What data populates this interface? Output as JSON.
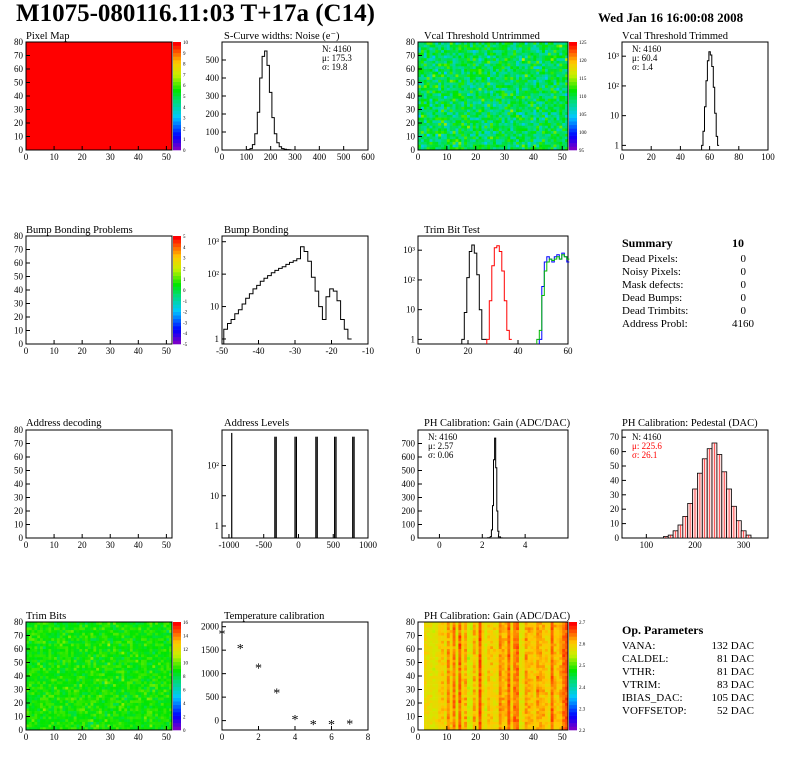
{
  "header": {
    "title": "M1075-080116.11:03 T+17a (C14)",
    "date": "Wed Jan 16 16:00:08 2008"
  },
  "chart_data": [
    {
      "id": "pixel-map",
      "type": "heatmap",
      "title": "Pixel Map",
      "xlim": [
        0,
        52
      ],
      "ylim": [
        0,
        80
      ],
      "xticks": [
        0,
        10,
        20,
        30,
        40,
        50
      ],
      "yticks": [
        0,
        10,
        20,
        30,
        40,
        50,
        60,
        70,
        80
      ],
      "zscale_ticks": [
        0,
        1,
        2,
        3,
        4,
        5,
        6,
        7,
        8,
        9,
        10
      ],
      "fill": "#ff0000"
    },
    {
      "id": "scurve-noise",
      "type": "line",
      "title": "S-Curve widths: Noise (e⁻)",
      "xlim": [
        0,
        600
      ],
      "ylim": [
        0,
        600
      ],
      "xticks": [
        0,
        100,
        200,
        300,
        400,
        500,
        600
      ],
      "yticks": [
        0,
        100,
        200,
        300,
        400,
        500
      ],
      "stats": [
        "N: 4160",
        "μ: 175.3",
        "σ: 19.8"
      ],
      "x": [
        110,
        120,
        130,
        140,
        150,
        160,
        170,
        180,
        190,
        200,
        210,
        220,
        230,
        240,
        250,
        260,
        270,
        280
      ],
      "y": [
        2,
        8,
        30,
        90,
        210,
        400,
        520,
        550,
        470,
        320,
        180,
        90,
        40,
        18,
        8,
        4,
        2,
        1
      ]
    },
    {
      "id": "vcal-untrimmed",
      "type": "heatmap",
      "title": "Vcal Threshold Untrimmed",
      "xlim": [
        0,
        52
      ],
      "ylim": [
        0,
        80
      ],
      "xticks": [
        0,
        10,
        20,
        30,
        40,
        50
      ],
      "yticks": [
        0,
        10,
        20,
        30,
        40,
        50,
        60,
        70,
        80
      ],
      "zscale_ticks": [
        95,
        100,
        105,
        110,
        115,
        120,
        125
      ],
      "zrange": [
        95,
        125
      ]
    },
    {
      "id": "vcal-trimmed",
      "type": "line",
      "title": "Vcal Threshold Trimmed",
      "xlim": [
        0,
        100
      ],
      "ylog": true,
      "ylim": [
        0.7,
        3000
      ],
      "xticks": [
        0,
        20,
        40,
        60,
        80,
        100
      ],
      "yticks": [
        1,
        10,
        100,
        1000
      ],
      "yticklabels": [
        "1",
        "10",
        "10²",
        "10³"
      ],
      "stats": [
        "N: 4160",
        "μ: 60.4",
        "σ:  1.4"
      ],
      "x": [
        55,
        56,
        57,
        58,
        59,
        60,
        61,
        62,
        63,
        64,
        65,
        66
      ],
      "y": [
        1,
        3,
        20,
        150,
        700,
        1400,
        1100,
        450,
        90,
        12,
        2,
        1
      ]
    },
    {
      "id": "bump-problems",
      "type": "heatmap",
      "title": "Bump Bonding Problems",
      "xlim": [
        0,
        52
      ],
      "ylim": [
        0,
        80
      ],
      "xticks": [
        0,
        10,
        20,
        30,
        40,
        50
      ],
      "yticks": [
        0,
        10,
        20,
        30,
        40,
        50,
        60,
        70,
        80
      ],
      "zscale_ticks": [
        -5,
        -4,
        -3,
        -2,
        -1,
        0,
        1,
        2,
        3,
        4,
        5
      ],
      "fill": "none"
    },
    {
      "id": "bump-bonding",
      "type": "line",
      "title": "Bump Bonding",
      "xlim": [
        -50,
        -10
      ],
      "ylog": true,
      "ylim": [
        0.7,
        1500
      ],
      "xticks": [
        -50,
        -40,
        -30,
        -20,
        -10
      ],
      "yticks": [
        1,
        10,
        100,
        1000
      ],
      "yticklabels": [
        "1",
        "10",
        "10²",
        "10³"
      ],
      "x": [
        -49,
        -48,
        -47,
        -46,
        -45,
        -44,
        -43,
        -42,
        -41,
        -40,
        -39,
        -38,
        -37,
        -36,
        -35,
        -34,
        -33,
        -32,
        -31,
        -30,
        -29,
        -28,
        -27,
        -26,
        -25,
        -24,
        -23,
        -22,
        -21,
        -20,
        -19,
        -18,
        -17,
        -16,
        -15
      ],
      "y": [
        2,
        3,
        4,
        6,
        8,
        12,
        18,
        25,
        35,
        45,
        60,
        75,
        90,
        110,
        130,
        150,
        170,
        200,
        230,
        260,
        300,
        700,
        500,
        250,
        80,
        30,
        10,
        4,
        20,
        35,
        30,
        15,
        4,
        2,
        1
      ]
    },
    {
      "id": "trim-bit-test",
      "type": "line",
      "title": "Trim Bit Test",
      "xlim": [
        0,
        60
      ],
      "ylog": true,
      "ylim": [
        0.7,
        3000
      ],
      "xticks": [
        0,
        20,
        40,
        60
      ],
      "yticks": [
        1,
        10,
        100,
        1000
      ],
      "yticklabels": [
        "1",
        "10",
        "10²",
        "10³"
      ],
      "series": [
        {
          "color": "#000000",
          "x": [
            18,
            19,
            20,
            21,
            22,
            23,
            24,
            25,
            26,
            27
          ],
          "y": [
            1,
            8,
            120,
            900,
            1500,
            800,
            150,
            10,
            1,
            1
          ]
        },
        {
          "color": "#ff0000",
          "x": [
            28,
            29,
            30,
            31,
            32,
            33,
            34,
            35,
            36,
            37
          ],
          "y": [
            1,
            20,
            300,
            1200,
            1400,
            900,
            200,
            20,
            2,
            1
          ]
        },
        {
          "color": "#0000ff",
          "x": [
            49,
            50,
            51,
            52,
            53,
            54,
            55,
            56,
            57,
            58,
            59,
            60
          ],
          "y": [
            1,
            60,
            400,
            600,
            500,
            400,
            600,
            700,
            500,
            800,
            600,
            400
          ]
        },
        {
          "color": "#00bb00",
          "x": [
            48,
            49,
            50,
            51,
            52,
            53,
            54,
            55,
            56,
            57,
            58,
            59,
            60
          ],
          "y": [
            1,
            2,
            30,
            200,
            400,
            500,
            450,
            500,
            600,
            500,
            700,
            600,
            500
          ]
        }
      ]
    },
    {
      "id": "address-decoding",
      "type": "heatmap",
      "title": "Address decoding",
      "xlim": [
        0,
        52
      ],
      "ylim": [
        0,
        80
      ],
      "xticks": [
        0,
        10,
        20,
        30,
        40,
        50
      ],
      "yticks": [
        0,
        10,
        20,
        30,
        40,
        50,
        60,
        70,
        80
      ],
      "fill": "none"
    },
    {
      "id": "address-levels",
      "type": "line",
      "title": "Address Levels",
      "xlim": [
        -1100,
        1000
      ],
      "ylog": true,
      "ylim": [
        0.4,
        1500
      ],
      "xticks": [
        -1000,
        -500,
        0,
        500,
        1000
      ],
      "yticks": [
        1,
        10,
        100
      ],
      "yticklabels": [
        "1",
        "10",
        "10²"
      ],
      "x": [
        -960,
        -340,
        -320,
        -50,
        -30,
        250,
        270,
        520,
        540,
        780,
        800
      ],
      "y": [
        1200,
        900,
        900,
        900,
        900,
        900,
        900,
        900,
        900,
        900,
        900
      ]
    },
    {
      "id": "ph-gain",
      "type": "line",
      "title": "PH Calibration: Gain (ADC/DAC)",
      "xlim": [
        -1,
        6
      ],
      "ylim": [
        0,
        800
      ],
      "xticks": [
        0,
        2,
        4
      ],
      "yticks": [
        0,
        100,
        200,
        300,
        400,
        500,
        600,
        700
      ],
      "stats": [
        "N: 4160",
        "μ: 2.57",
        "σ: 0.06"
      ],
      "x": [
        2.3,
        2.4,
        2.45,
        2.5,
        2.55,
        2.6,
        2.65,
        2.7,
        2.75,
        2.8,
        2.9
      ],
      "y": [
        2,
        10,
        60,
        240,
        580,
        740,
        520,
        200,
        50,
        8,
        1
      ]
    },
    {
      "id": "ph-pedestal",
      "type": "bar",
      "title": "PH Calibration: Pedestal (DAC)",
      "xlim": [
        50,
        350
      ],
      "ylim": [
        0,
        75
      ],
      "xticks": [
        100,
        200,
        300
      ],
      "yticks": [
        0,
        10,
        20,
        30,
        40,
        50,
        60,
        70
      ],
      "stats": [
        "N: 4160",
        "μ: 225.6",
        "σ: 26.1"
      ],
      "stats_colors": [
        "#000000",
        "#ff0000",
        "#ff0000"
      ],
      "x": [
        140,
        150,
        160,
        170,
        180,
        190,
        200,
        210,
        220,
        230,
        240,
        250,
        260,
        270,
        280,
        290,
        300,
        310
      ],
      "y": [
        1,
        2,
        5,
        9,
        15,
        24,
        34,
        45,
        55,
        62,
        66,
        58,
        46,
        34,
        22,
        12,
        5,
        2
      ]
    },
    {
      "id": "trim-bits",
      "type": "heatmap",
      "title": "Trim Bits",
      "xlim": [
        0,
        52
      ],
      "ylim": [
        0,
        80
      ],
      "xticks": [
        0,
        10,
        20,
        30,
        40,
        50
      ],
      "yticks": [
        0,
        10,
        20,
        30,
        40,
        50,
        60,
        70,
        80
      ],
      "zscale_ticks": [
        0,
        2,
        4,
        6,
        8,
        10,
        12,
        14,
        16
      ],
      "zrange": [
        0,
        16
      ]
    },
    {
      "id": "temperature",
      "type": "scatter",
      "title": "Temperature calibration",
      "xlim": [
        0,
        8
      ],
      "ylim": [
        -200,
        2100
      ],
      "xticks": [
        0,
        2,
        4,
        6,
        8
      ],
      "yticks": [
        0,
        500,
        1000,
        1500,
        2000
      ],
      "x": [
        0,
        1,
        2,
        3,
        4,
        5,
        6,
        7
      ],
      "y": [
        1850,
        1550,
        1130,
        600,
        30,
        -70,
        -70,
        -60
      ]
    },
    {
      "id": "ph-gain-map",
      "type": "heatmap",
      "title": "PH Calibration: Gain (ADC/DAC)",
      "xlim": [
        0,
        52
      ],
      "ylim": [
        0,
        80
      ],
      "xticks": [
        0,
        10,
        20,
        30,
        40,
        50
      ],
      "yticks": [
        0,
        10,
        20,
        30,
        40,
        50,
        60,
        70,
        80
      ],
      "zscale_ticks": [
        2.2,
        2.3,
        2.4,
        2.5,
        2.6,
        2.7
      ],
      "zrange": [
        2.15,
        2.7
      ]
    }
  ],
  "summary": {
    "title": "Summary",
    "total": "10",
    "rows": [
      {
        "label": "Dead Pixels:",
        "value": "0"
      },
      {
        "label": "Noisy Pixels:",
        "value": "0"
      },
      {
        "label": "Mask defects:",
        "value": "0"
      },
      {
        "label": "Dead Bumps:",
        "value": "0"
      },
      {
        "label": "Dead Trimbits:",
        "value": "0"
      },
      {
        "label": "Address Probl:",
        "value": "4160"
      }
    ]
  },
  "op_parameters": {
    "title": "Op. Parameters",
    "rows": [
      {
        "label": "VANA:",
        "value": "132 DAC"
      },
      {
        "label": "CALDEL:",
        "value": "81 DAC"
      },
      {
        "label": "VTHR:",
        "value": "81 DAC"
      },
      {
        "label": "VTRIM:",
        "value": "83 DAC"
      },
      {
        "label": "IBIAS_DAC:",
        "value": "105 DAC"
      },
      {
        "label": "VOFFSETOP:",
        "value": "52 DAC"
      }
    ]
  }
}
